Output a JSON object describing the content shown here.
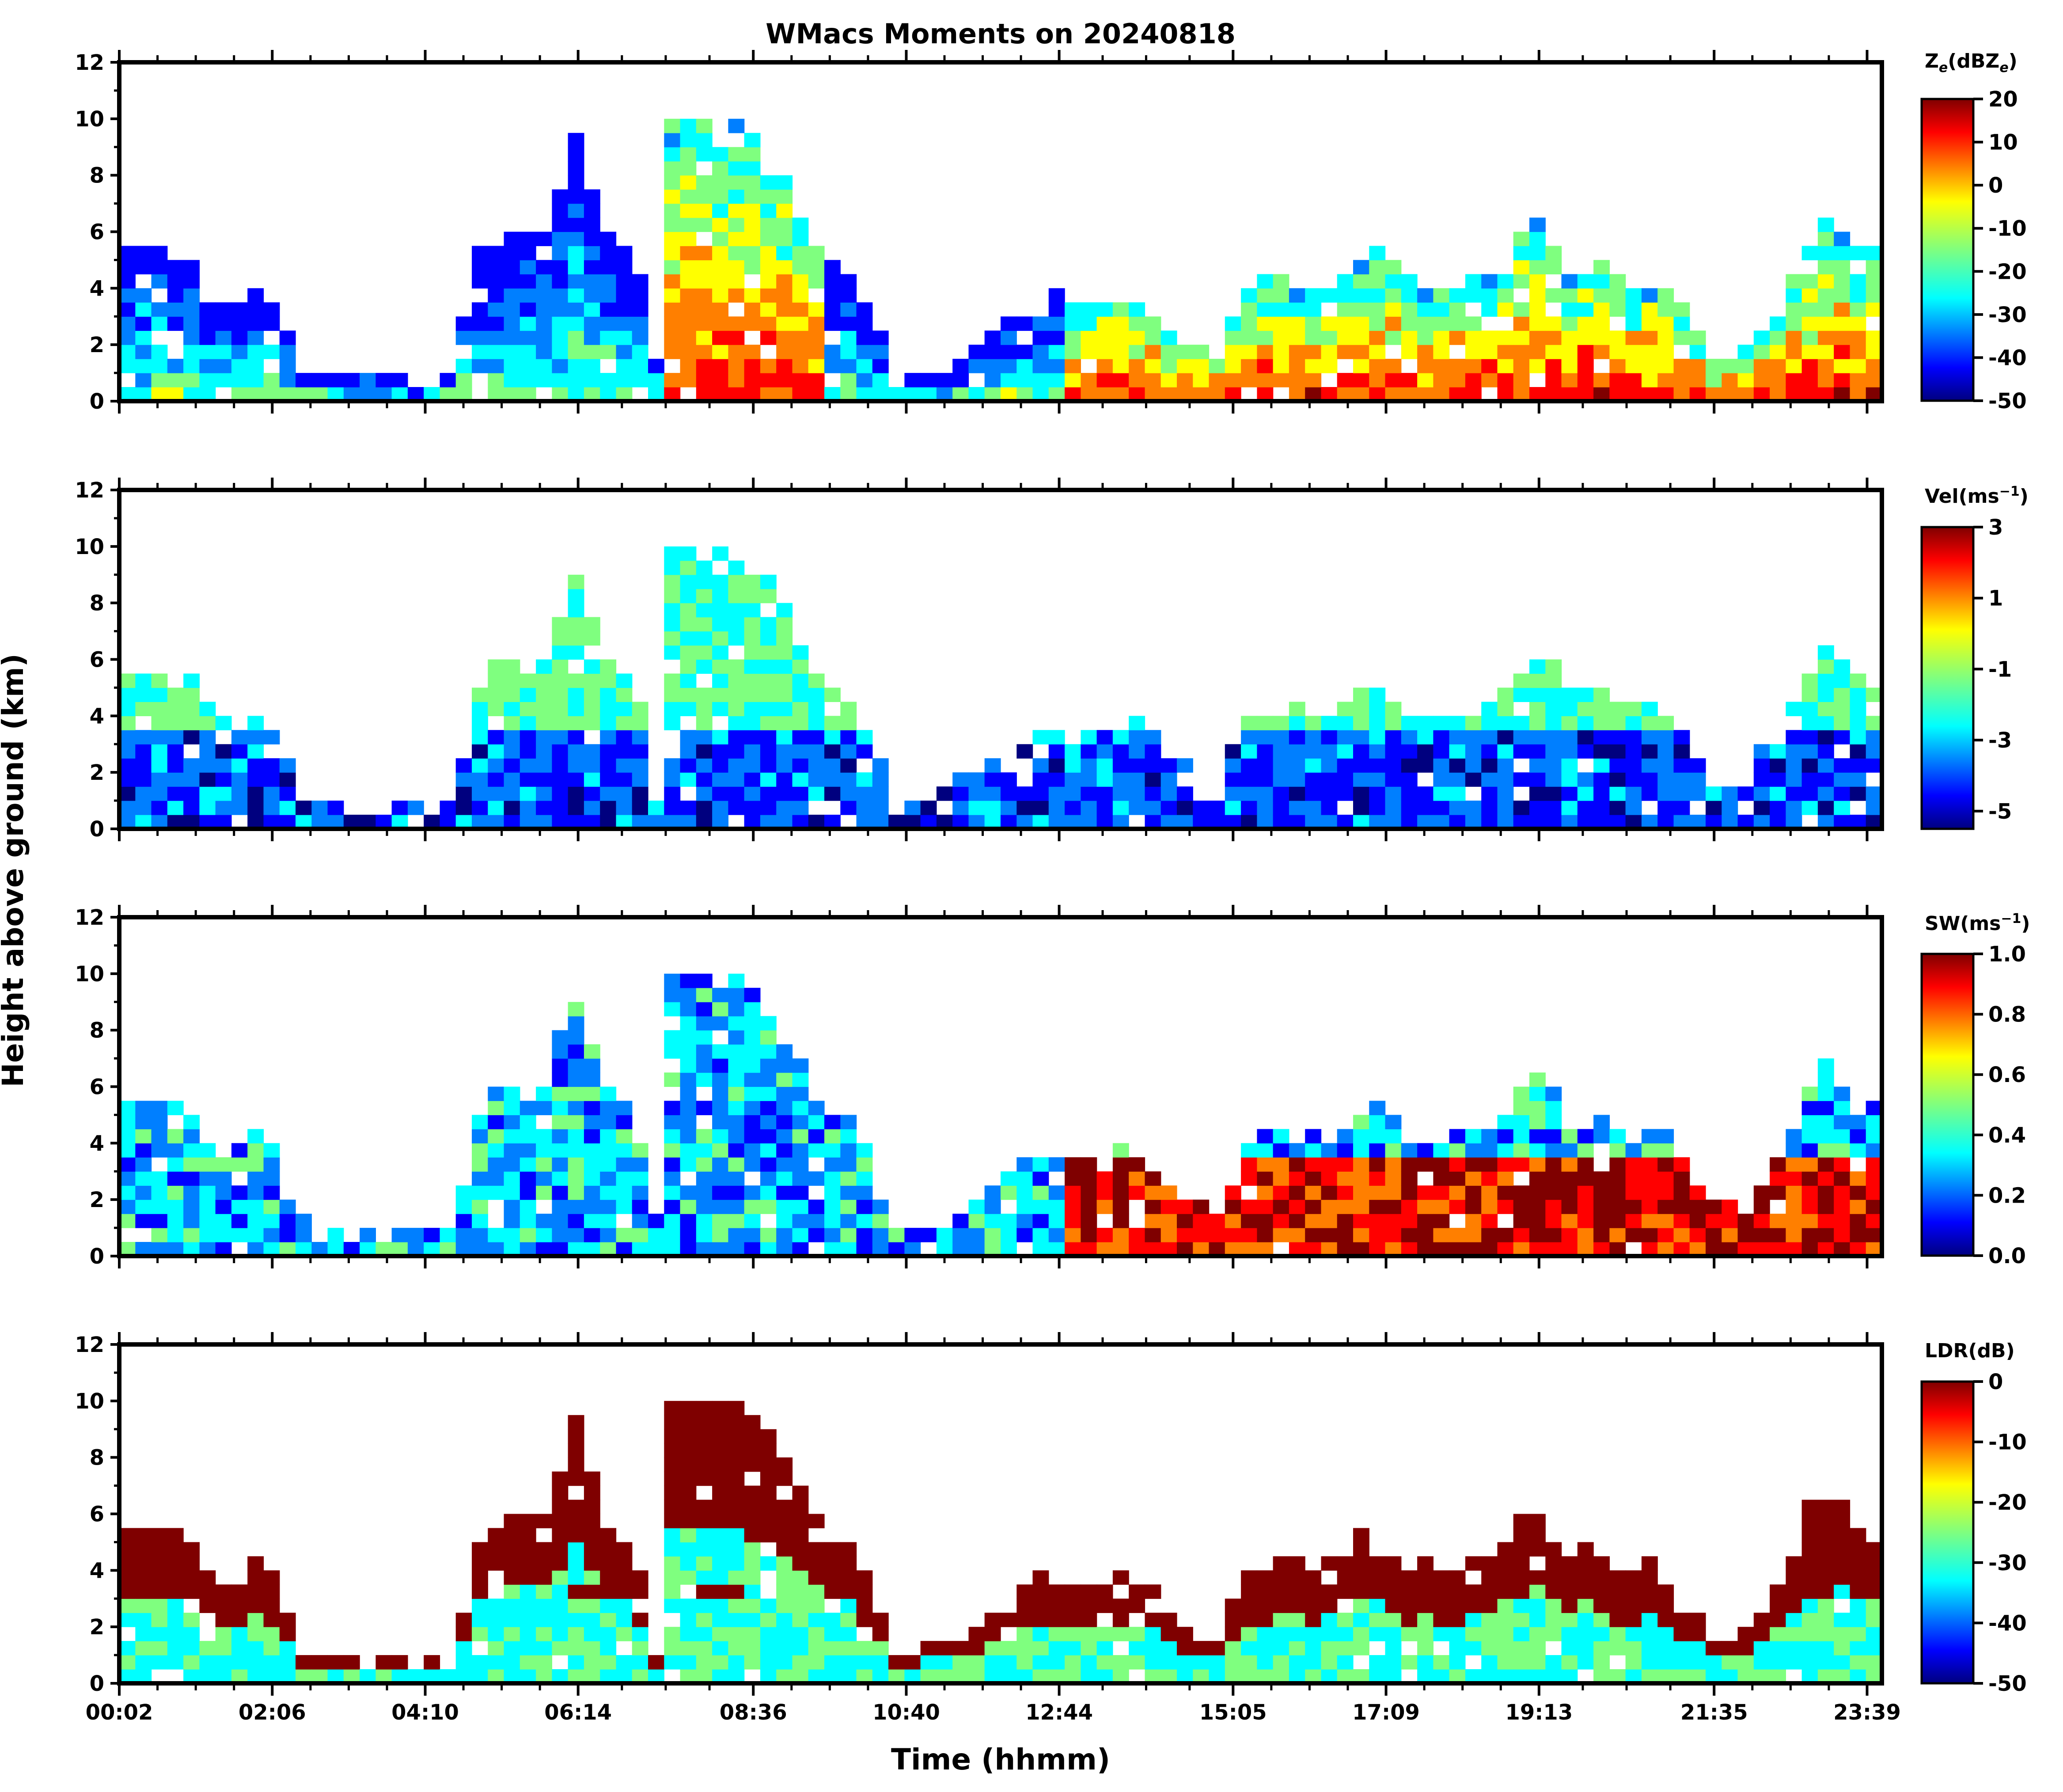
{
  "title": "WMacs Moments on 20240818",
  "xlabel": "Time (hhmm)",
  "ylabel": "Height above ground (km)",
  "x_tick_labels": [
    "00:02",
    "02:06",
    "04:10",
    "06:14",
    "08:36",
    "10:40",
    "12:44",
    "15:05",
    "17:09",
    "19:13",
    "21:35",
    "23:39"
  ],
  "y_tick_labels": [
    "0",
    "2",
    "4",
    "6",
    "8",
    "10",
    "12"
  ],
  "colormap": [
    "#00007f",
    "#0000ff",
    "#007fff",
    "#00ffff",
    "#7fff7f",
    "#ffff00",
    "#ff7f00",
    "#ff0000",
    "#7f0000"
  ],
  "panels": [
    {
      "name": "Ze",
      "cbar_label_main": "Z",
      "cbar_label_sub1": "e",
      "cbar_label_mid": "(dBZ",
      "cbar_label_sub2": "e",
      "cbar_label_end": ")",
      "cbar_ticks": [
        "20",
        "10",
        "0",
        "-10",
        "-20",
        "-30",
        "-40",
        "-50"
      ]
    },
    {
      "name": "Vel",
      "cbar_label_main": "Vel(ms",
      "cbar_label_sup": "−1",
      "cbar_label_end": ")",
      "cbar_ticks": [
        "3",
        "1",
        "-1",
        "-3",
        "-5"
      ]
    },
    {
      "name": "SW",
      "cbar_label_main": "SW(ms",
      "cbar_label_sup": "−1",
      "cbar_label_end": ")",
      "cbar_ticks": [
        "1.0",
        "0.8",
        "0.6",
        "0.4",
        "0.2",
        "0.0"
      ]
    },
    {
      "name": "LDR",
      "cbar_label_main": "LDR(dB)",
      "cbar_ticks": [
        "0",
        "-10",
        "-20",
        "-30",
        "-40",
        "-50"
      ]
    }
  ],
  "chart_data": {
    "type": "heatmap",
    "title": "WMacs Moments on 20240818",
    "xlabel": "Time (hhmm)",
    "ylabel": "Height above ground (km)",
    "ylim": [
      0,
      12
    ],
    "x_ticks": [
      "00:02",
      "02:06",
      "04:10",
      "06:14",
      "08:36",
      "10:40",
      "12:44",
      "15:05",
      "17:09",
      "19:13",
      "21:35",
      "23:39"
    ],
    "x_tick_hours": [
      0.033,
      2.1,
      4.167,
      6.233,
      8.6,
      10.667,
      12.733,
      15.083,
      17.15,
      19.217,
      21.583,
      23.65
    ],
    "xlim_hours": [
      0.033,
      23.85
    ],
    "subplots": [
      {
        "variable": "Ze",
        "units": "dBZe",
        "clim": [
          -50,
          20
        ]
      },
      {
        "variable": "Vel",
        "units": "ms-1",
        "clim": [
          -5.5,
          3
        ]
      },
      {
        "variable": "SW",
        "units": "ms-1",
        "clim": [
          0,
          1
        ]
      },
      {
        "variable": "LDR",
        "units": "dB",
        "clim": [
          -50,
          0
        ]
      }
    ],
    "cloud_top_profile_km": [
      [
        0.033,
        5.6
      ],
      [
        0.5,
        5.6
      ],
      [
        1.0,
        5.0
      ],
      [
        1.5,
        3.5
      ],
      [
        2.0,
        4.2
      ],
      [
        2.5,
        1.0
      ],
      [
        3.0,
        0.8
      ],
      [
        3.5,
        0.7
      ],
      [
        4.0,
        0.8
      ],
      [
        4.6,
        0.8
      ],
      [
        4.8,
        5.0
      ],
      [
        5.3,
        6.0
      ],
      [
        5.8,
        6.0
      ],
      [
        6.233,
        9.6
      ],
      [
        6.6,
        6.0
      ],
      [
        7.0,
        5.0
      ],
      [
        7.3,
        1.0
      ],
      [
        7.5,
        10.0
      ],
      [
        8.0,
        10.0
      ],
      [
        8.6,
        9.5
      ],
      [
        9.2,
        7.0
      ],
      [
        9.6,
        5.2
      ],
      [
        10.0,
        4.5
      ],
      [
        10.5,
        1.0
      ],
      [
        11.0,
        1.0
      ],
      [
        11.5,
        2.0
      ],
      [
        12.0,
        2.5
      ],
      [
        12.5,
        4.0
      ],
      [
        12.733,
        3.5
      ],
      [
        13.2,
        3.5
      ],
      [
        13.8,
        3.8
      ],
      [
        14.4,
        2.2
      ],
      [
        14.9,
        1.2
      ],
      [
        15.2,
        4.0
      ],
      [
        15.8,
        4.3
      ],
      [
        16.4,
        4.0
      ],
      [
        17.0,
        5.6
      ],
      [
        17.5,
        4.0
      ],
      [
        18.0,
        4.0
      ],
      [
        18.5,
        4.5
      ],
      [
        19.0,
        6.0
      ],
      [
        19.3,
        6.5
      ],
      [
        19.6,
        4.5
      ],
      [
        20.0,
        5.0
      ],
      [
        20.4,
        4.0
      ],
      [
        20.8,
        4.5
      ],
      [
        21.2,
        3.0
      ],
      [
        21.6,
        1.6
      ],
      [
        22.0,
        1.8
      ],
      [
        22.5,
        3.5
      ],
      [
        23.0,
        6.8
      ],
      [
        23.4,
        6.0
      ],
      [
        23.85,
        4.8
      ]
    ]
  }
}
